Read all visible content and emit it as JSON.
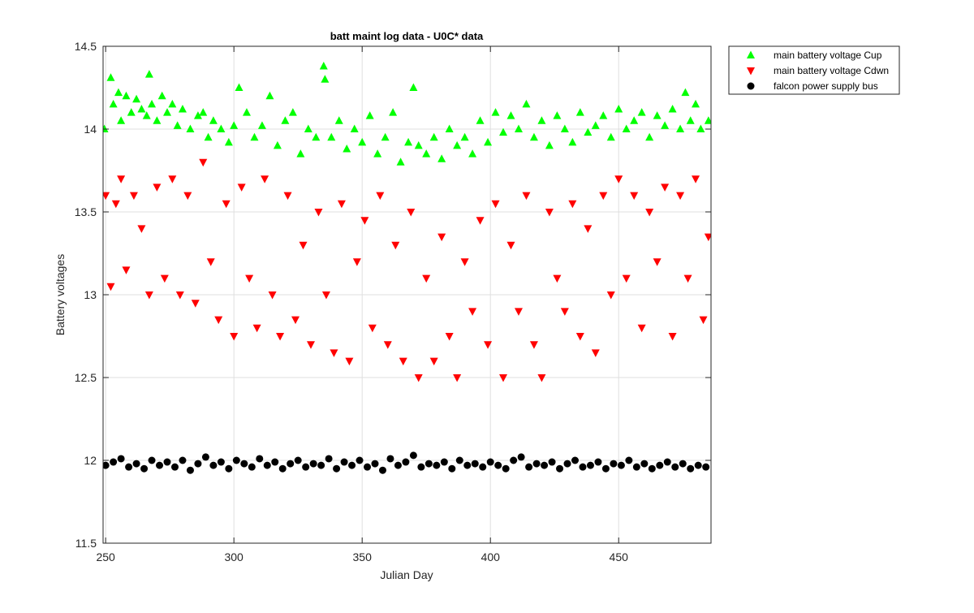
{
  "chart_data": {
    "type": "scatter",
    "title": "batt maint log data - U0C* data",
    "xlabel": "Julian Day",
    "ylabel": "Battery voltages",
    "xlim": [
      249,
      486
    ],
    "ylim": [
      11.5,
      14.5
    ],
    "xticks": [
      250,
      300,
      350,
      400,
      450
    ],
    "yticks": [
      11.5,
      12,
      12.5,
      13,
      13.5,
      14,
      14.5
    ],
    "xtick_labels": [
      "250",
      "300",
      "350",
      "400",
      "450"
    ],
    "ytick_labels": [
      "11.5",
      "12",
      "12.5",
      "13",
      "13.5",
      "14",
      "14.5"
    ],
    "grid": true,
    "legend_position": "outside-top-right",
    "series": [
      {
        "name": "main battery voltage Cup",
        "marker": "triangle-up",
        "color": "#00ff00",
        "x": [
          249.5,
          252,
          253,
          255,
          256,
          258,
          260,
          262,
          264,
          266,
          267,
          268,
          270,
          272,
          274,
          276,
          278,
          280,
          283,
          286,
          288,
          290,
          292,
          295,
          298,
          300,
          302,
          305,
          308,
          311,
          314,
          317,
          320,
          323,
          326,
          329,
          332,
          335,
          335.5,
          338,
          341,
          344,
          347,
          350,
          353,
          356,
          359,
          362,
          365,
          368,
          370,
          372,
          375,
          378,
          381,
          384,
          387,
          390,
          393,
          396,
          399,
          402,
          405,
          408,
          411,
          414,
          417,
          420,
          423,
          426,
          429,
          432,
          435,
          438,
          441,
          444,
          447,
          450,
          453,
          456,
          459,
          462,
          465,
          468,
          471,
          474,
          476,
          478,
          480,
          482,
          485
        ],
        "y": [
          14.0,
          14.31,
          14.15,
          14.22,
          14.05,
          14.2,
          14.1,
          14.18,
          14.12,
          14.08,
          14.33,
          14.15,
          14.05,
          14.2,
          14.1,
          14.15,
          14.02,
          14.12,
          14.0,
          14.08,
          14.1,
          13.95,
          14.05,
          14.0,
          13.92,
          14.02,
          14.25,
          14.1,
          13.95,
          14.02,
          14.2,
          13.9,
          14.05,
          14.1,
          13.85,
          14.0,
          13.95,
          14.38,
          14.3,
          13.95,
          14.05,
          13.88,
          14.0,
          13.92,
          14.08,
          13.85,
          13.95,
          14.1,
          13.8,
          13.92,
          14.25,
          13.9,
          13.85,
          13.95,
          13.82,
          14.0,
          13.9,
          13.95,
          13.85,
          14.05,
          13.92,
          14.1,
          13.98,
          14.08,
          14.0,
          14.15,
          13.95,
          14.05,
          13.9,
          14.08,
          14.0,
          13.92,
          14.1,
          13.98,
          14.02,
          14.08,
          13.95,
          14.12,
          14.0,
          14.05,
          14.1,
          13.95,
          14.08,
          14.02,
          14.12,
          14.0,
          14.22,
          14.05,
          14.15,
          14.0,
          14.05
        ]
      },
      {
        "name": "main battery voltage Cdwn",
        "marker": "triangle-down",
        "color": "#ff0000",
        "x": [
          250,
          252,
          254,
          256,
          258,
          261,
          264,
          267,
          270,
          273,
          276,
          279,
          282,
          285,
          288,
          291,
          294,
          297,
          300,
          303,
          306,
          309,
          312,
          315,
          318,
          321,
          324,
          327,
          330,
          333,
          336,
          339,
          342,
          345,
          348,
          351,
          354,
          357,
          360,
          363,
          366,
          369,
          372,
          375,
          378,
          381,
          384,
          387,
          390,
          393,
          396,
          399,
          402,
          405,
          408,
          411,
          414,
          417,
          420,
          423,
          426,
          429,
          432,
          435,
          438,
          441,
          444,
          447,
          450,
          453,
          456,
          459,
          462,
          465,
          468,
          471,
          474,
          477,
          480,
          483,
          485
        ],
        "y": [
          13.6,
          13.05,
          13.55,
          13.7,
          13.15,
          13.6,
          13.4,
          13.0,
          13.65,
          13.1,
          13.7,
          13.0,
          13.6,
          12.95,
          13.8,
          13.2,
          12.85,
          13.55,
          12.75,
          13.65,
          13.1,
          12.8,
          13.7,
          13.0,
          12.75,
          13.6,
          12.85,
          13.3,
          12.7,
          13.5,
          13.0,
          12.65,
          13.55,
          12.6,
          13.2,
          13.45,
          12.8,
          13.6,
          12.7,
          13.3,
          12.6,
          13.5,
          12.5,
          13.1,
          12.6,
          13.35,
          12.75,
          12.5,
          13.2,
          12.9,
          13.45,
          12.7,
          13.55,
          12.5,
          13.3,
          12.9,
          13.6,
          12.7,
          12.5,
          13.5,
          13.1,
          12.9,
          13.55,
          12.75,
          13.4,
          12.65,
          13.6,
          13.0,
          13.7,
          13.1,
          13.6,
          12.8,
          13.5,
          13.2,
          13.65,
          12.75,
          13.6,
          13.1,
          13.7,
          12.85,
          13.35
        ]
      },
      {
        "name": "falcon power supply bus",
        "marker": "circle",
        "color": "#000000",
        "x": [
          250,
          253,
          256,
          259,
          262,
          265,
          268,
          271,
          274,
          277,
          280,
          283,
          286,
          289,
          292,
          295,
          298,
          301,
          304,
          307,
          310,
          313,
          316,
          319,
          322,
          325,
          328,
          331,
          334,
          337,
          340,
          343,
          346,
          349,
          352,
          355,
          358,
          361,
          364,
          367,
          370,
          373,
          376,
          379,
          382,
          385,
          388,
          391,
          394,
          397,
          400,
          403,
          406,
          409,
          412,
          415,
          418,
          421,
          424,
          427,
          430,
          433,
          436,
          439,
          442,
          445,
          448,
          451,
          454,
          457,
          460,
          463,
          466,
          469,
          472,
          475,
          478,
          481,
          484
        ],
        "y": [
          11.97,
          11.99,
          12.01,
          11.96,
          11.98,
          11.95,
          12.0,
          11.97,
          11.99,
          11.96,
          12.0,
          11.94,
          11.98,
          12.02,
          11.97,
          11.99,
          11.95,
          12.0,
          11.98,
          11.96,
          12.01,
          11.97,
          11.99,
          11.95,
          11.98,
          12.0,
          11.96,
          11.98,
          11.97,
          12.01,
          11.95,
          11.99,
          11.97,
          12.0,
          11.96,
          11.98,
          11.94,
          12.01,
          11.97,
          11.99,
          12.03,
          11.96,
          11.98,
          11.97,
          11.99,
          11.95,
          12.0,
          11.97,
          11.98,
          11.96,
          11.99,
          11.97,
          11.95,
          12.0,
          12.02,
          11.96,
          11.98,
          11.97,
          11.99,
          11.95,
          11.98,
          12.0,
          11.96,
          11.97,
          11.99,
          11.95,
          11.98,
          11.97,
          12.0,
          11.96,
          11.98,
          11.95,
          11.97,
          11.99,
          11.96,
          11.98,
          11.95,
          11.97,
          11.96
        ]
      }
    ]
  }
}
